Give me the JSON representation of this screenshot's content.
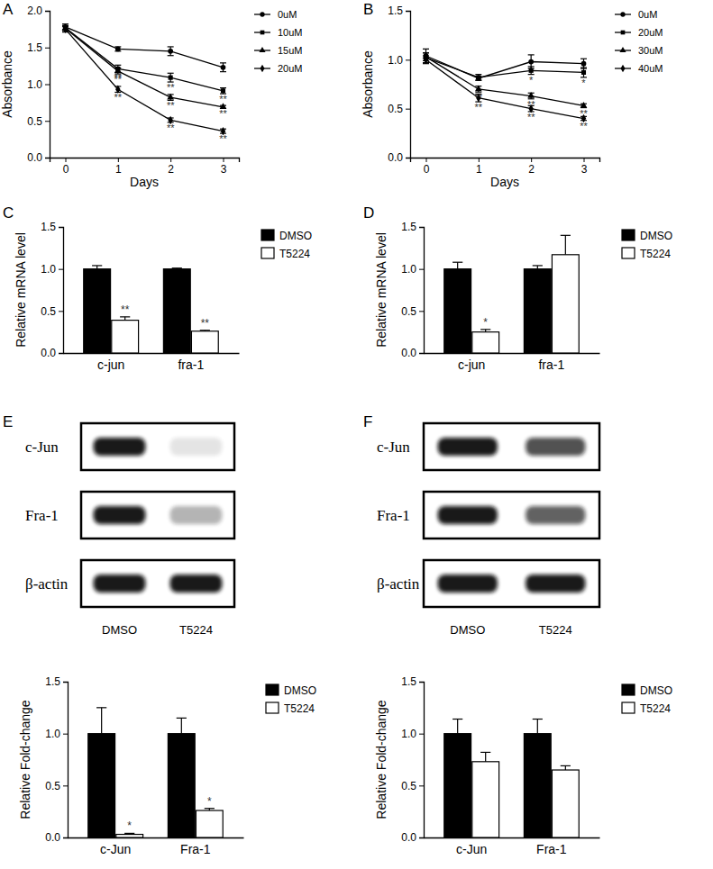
{
  "chart_data": [
    {
      "type": "line",
      "title": "A",
      "x_label": "Days",
      "y_label": "Absorbance",
      "x": [
        0,
        1,
        2,
        3
      ],
      "xlim": [
        -0.3,
        3.3
      ],
      "xticks": [
        0,
        1,
        2,
        3
      ],
      "ylim": [
        0,
        2
      ],
      "yticks": [
        {
          "value": 0,
          "label": "0.0"
        },
        0.5,
        {
          "value": 1,
          "label": "1.0"
        },
        1.5,
        {
          "value": 2,
          "label": "2.0"
        }
      ],
      "legend": "right",
      "series": [
        {
          "name": "0uM",
          "color": "#000000",
          "marker": "circle",
          "values": [
            1.78,
            1.48,
            1.45,
            1.23
          ],
          "errors": [
            0.04,
            0.03,
            0.06,
            0.06
          ]
        },
        {
          "name": "10uM",
          "color": "#000000",
          "marker": "square",
          "values": [
            1.77,
            1.21,
            1.09,
            0.91
          ],
          "errors": [
            0.03,
            0.05,
            0.06,
            0.04
          ],
          "significance": [
            null,
            "**",
            "**",
            "**"
          ]
        },
        {
          "name": "15uM",
          "color": "#000000",
          "marker": "triangle",
          "values": [
            1.76,
            1.18,
            0.82,
            0.69
          ],
          "errors": [
            0.03,
            0.04,
            0.04,
            0.02
          ],
          "significance": [
            null,
            "**",
            "**",
            "**"
          ]
        },
        {
          "name": "20uM",
          "color": "#000000",
          "marker": "diamond",
          "values": [
            1.75,
            0.93,
            0.51,
            0.36
          ],
          "errors": [
            0.04,
            0.04,
            0.03,
            0.03
          ],
          "significance": [
            null,
            "**",
            "**",
            "**"
          ]
        }
      ]
    },
    {
      "type": "line",
      "title": "B",
      "x_label": "Days",
      "y_label": "Absorbance",
      "x": [
        0,
        1,
        2,
        3
      ],
      "xlim": [
        -0.3,
        3.3
      ],
      "xticks": [
        0,
        1,
        2,
        3
      ],
      "ylim": [
        0,
        1.5
      ],
      "yticks": [
        {
          "value": 0,
          "label": "0.0"
        },
        0.5,
        {
          "value": 1,
          "label": "1.0"
        },
        1.5
      ],
      "legend": "right",
      "series": [
        {
          "name": "0uM",
          "color": "#000000",
          "marker": "circle",
          "values": [
            1.04,
            0.81,
            0.98,
            0.96
          ],
          "errors": [
            0.07,
            0.02,
            0.07,
            0.05
          ]
        },
        {
          "name": "20uM",
          "color": "#000000",
          "marker": "square",
          "values": [
            1.02,
            0.82,
            0.89,
            0.87
          ],
          "errors": [
            0.05,
            0.03,
            0.04,
            0.05
          ],
          "significance": [
            null,
            null,
            "*",
            "*"
          ]
        },
        {
          "name": "30uM",
          "color": "#000000",
          "marker": "triangle",
          "values": [
            1.03,
            0.7,
            0.63,
            0.53
          ],
          "errors": [
            0.04,
            0.03,
            0.03,
            0.02
          ],
          "significance": [
            null,
            "**",
            "**",
            "**"
          ]
        },
        {
          "name": "40uM",
          "color": "#000000",
          "marker": "diamond",
          "values": [
            1.0,
            0.61,
            0.5,
            0.4
          ],
          "errors": [
            0.04,
            0.04,
            0.03,
            0.02
          ],
          "significance": [
            null,
            "**",
            "**",
            "**"
          ]
        }
      ]
    },
    {
      "type": "bar",
      "title": "C",
      "y_label": "Relative mRNA level",
      "categories": [
        "c-jun",
        "fra-1"
      ],
      "ylim": [
        0,
        1.5
      ],
      "yticks": [
        {
          "value": 0,
          "label": "0.0"
        },
        0.5,
        {
          "value": 1,
          "label": "1.0"
        },
        1.5
      ],
      "legend": "right",
      "series": [
        {
          "name": "DMSO",
          "color": "#000000",
          "values": [
            1.0,
            1.0
          ],
          "errors": [
            0.04,
            0.01
          ]
        },
        {
          "name": "T5224",
          "color": "#ffffff",
          "values": [
            0.39,
            0.26
          ],
          "errors": [
            0.04,
            0.01
          ],
          "significance": [
            "**",
            "**"
          ]
        }
      ]
    },
    {
      "type": "bar",
      "title": "D",
      "y_label": "Relative mRNA level",
      "categories": [
        "c-jun",
        "fra-1"
      ],
      "ylim": [
        0,
        1.5
      ],
      "yticks": [
        {
          "value": 0,
          "label": "0.0"
        },
        0.5,
        {
          "value": 1,
          "label": "1.0"
        },
        1.5
      ],
      "legend": "right",
      "series": [
        {
          "name": "DMSO",
          "color": "#000000",
          "values": [
            1.0,
            1.0
          ],
          "errors": [
            0.08,
            0.04
          ]
        },
        {
          "name": "T5224",
          "color": "#ffffff",
          "values": [
            0.25,
            1.17
          ],
          "errors": [
            0.03,
            0.23
          ],
          "significance": [
            "*",
            null
          ]
        }
      ]
    },
    {
      "type": "blot",
      "title": "E",
      "rows": [
        "c-Jun",
        "Fra-1",
        "β-actin"
      ],
      "lanes": [
        "DMSO",
        "T5224"
      ]
    },
    {
      "type": "bar",
      "y_label": "Relative Fold-change",
      "categories": [
        "c-Jun",
        "Fra-1"
      ],
      "ylim": [
        0,
        1.5
      ],
      "yticks": [
        {
          "value": 0,
          "label": "0.0"
        },
        0.5,
        {
          "value": 1,
          "label": "1.0"
        },
        1.5
      ],
      "legend": "right",
      "series": [
        {
          "name": "DMSO",
          "color": "#000000",
          "values": [
            1.0,
            1.0
          ],
          "errors": [
            0.25,
            0.15
          ]
        },
        {
          "name": "T5224",
          "color": "#ffffff",
          "values": [
            0.03,
            0.26
          ],
          "errors": [
            0.01,
            0.02
          ],
          "significance": [
            "*",
            "*"
          ]
        }
      ]
    },
    {
      "type": "blot",
      "title": "F",
      "rows": [
        "c-Jun",
        "Fra-1",
        "β-actin"
      ],
      "lanes": [
        "DMSO",
        "T5224"
      ]
    },
    {
      "type": "bar",
      "y_label": "Relative Fold-change",
      "categories": [
        "c-Jun",
        "Fra-1"
      ],
      "ylim": [
        0,
        1.5
      ],
      "yticks": [
        {
          "value": 0,
          "label": "0.0"
        },
        0.5,
        {
          "value": 1,
          "label": "1.0"
        },
        1.5
      ],
      "legend": "right",
      "series": [
        {
          "name": "DMSO",
          "color": "#000000",
          "values": [
            1.0,
            1.0
          ],
          "errors": [
            0.14,
            0.14
          ]
        },
        {
          "name": "T5224",
          "color": "#ffffff",
          "values": [
            0.73,
            0.65
          ],
          "errors": [
            0.09,
            0.04
          ]
        }
      ]
    }
  ]
}
